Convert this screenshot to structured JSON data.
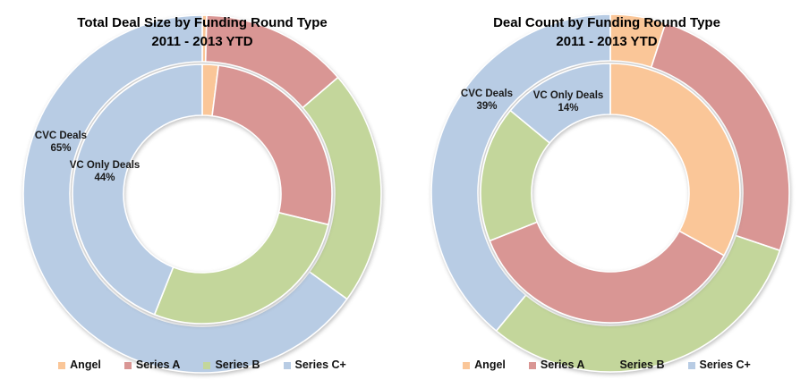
{
  "legend_items": [
    {
      "label": "Angel",
      "color": "#FAC698"
    },
    {
      "label": "Series A",
      "color": "#D99694"
    },
    {
      "label": "Series B",
      "color": "#C3D69B"
    },
    {
      "label": "Series C+",
      "color": "#B8CCE4"
    }
  ],
  "chart_data": [
    {
      "type": "donut",
      "title": "Total Deal Size by Funding Round Type",
      "subtitle": "2011 - 2013 YTD",
      "categories": [
        "Angel",
        "Series A",
        "Series B",
        "Series C+"
      ],
      "colors": [
        "#FAC698",
        "#D99694",
        "#C3D69B",
        "#B8CCE4"
      ],
      "legend_position": "bottom",
      "rings": [
        {
          "position": "outer",
          "name": "CVC Deals",
          "values_pct": [
            0.4,
            13.3,
            21.3,
            65.0
          ],
          "label": {
            "name": "CVC Deals",
            "value": "65%"
          }
        },
        {
          "position": "inner",
          "name": "VC Only Deals",
          "values_pct": [
            2.0,
            26.8,
            27.2,
            44.0
          ],
          "label": {
            "name": "VC Only Deals",
            "value": "44%"
          }
        }
      ]
    },
    {
      "type": "donut",
      "title": "Deal Count by Funding Round Type",
      "subtitle": "2011 - 2013 YTD",
      "categories": [
        "Angel",
        "Series A",
        "Series B",
        "Series C+"
      ],
      "colors": [
        "#FAC698",
        "#D99694",
        "#C3D69B",
        "#B8CCE4"
      ],
      "legend_position": "bottom",
      "rings": [
        {
          "position": "outer",
          "name": "CVC Deals",
          "values_pct": [
            5.0,
            25.2,
            30.8,
            39.0
          ],
          "label": {
            "name": "CVC Deals",
            "value": "39%"
          }
        },
        {
          "position": "inner",
          "name": "VC Only Deals",
          "values_pct": [
            33.0,
            36.0,
            17.0,
            14.0
          ],
          "label": {
            "name": "VC Only Deals",
            "value": "14%"
          }
        }
      ]
    }
  ]
}
